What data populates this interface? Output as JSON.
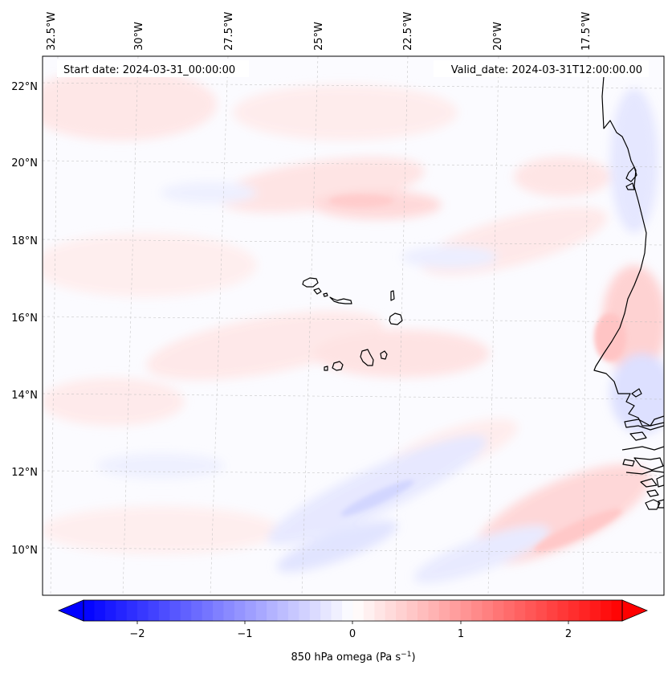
{
  "header": {
    "start_date": "Start date: 2024-03-31_00:00:00",
    "valid_date": "Valid_date: 2024-03-31T12:00:00.00"
  },
  "top_labels": [
    "32.5°W",
    "30°W",
    "27.5°W",
    "25°W",
    "22.5°W",
    "20°W",
    "17.5°W"
  ],
  "left_labels": [
    "22°N",
    "20°N",
    "18°N",
    "16°N",
    "14°N",
    "12°N",
    "10°N"
  ],
  "colorbar": {
    "ticks": [
      "−2",
      "−1",
      "0",
      "1",
      "2"
    ],
    "label_main": "850 hPa omega (Pa s",
    "label_sup": "−1",
    "label_close": ")",
    "range": [
      -2.6,
      2.6
    ],
    "low_color": "#0000ff",
    "high_color": "#ff0000"
  },
  "colors": {
    "coast": "#000000",
    "grid": "#bbbbbb",
    "ocean": "#fbfbff"
  }
}
